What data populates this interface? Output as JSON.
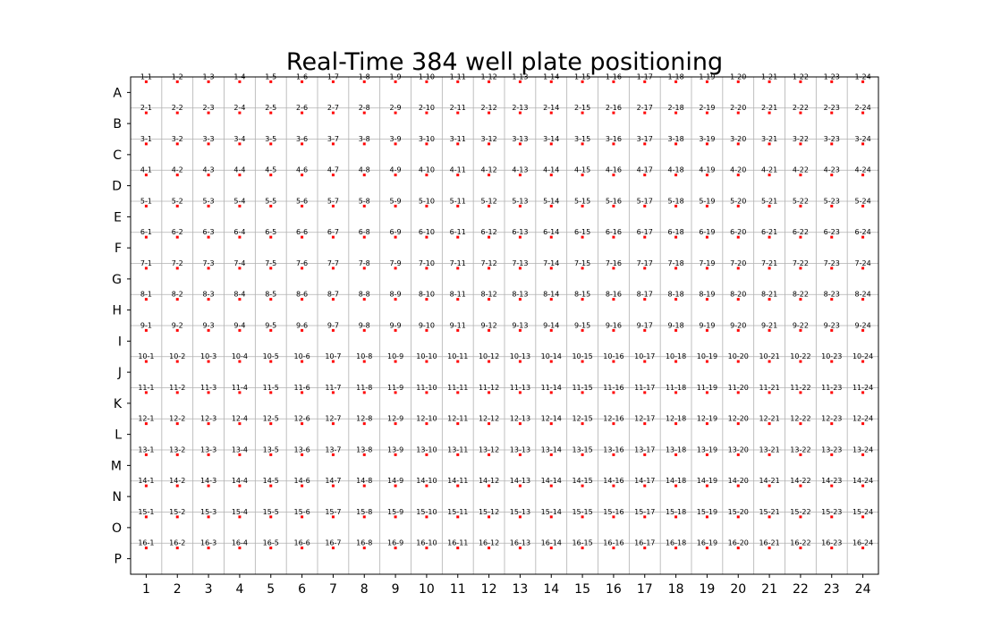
{
  "chart_data": {
    "type": "scatter",
    "title": "Real-Time 384 well plate positioning",
    "xlabel": "",
    "ylabel": "",
    "columns": [
      "1",
      "2",
      "3",
      "4",
      "5",
      "6",
      "7",
      "8",
      "9",
      "10",
      "11",
      "12",
      "13",
      "14",
      "15",
      "16",
      "17",
      "18",
      "19",
      "20",
      "21",
      "22",
      "23",
      "24"
    ],
    "rows": [
      "A",
      "B",
      "C",
      "D",
      "E",
      "F",
      "G",
      "H",
      "I",
      "J",
      "K",
      "L",
      "M",
      "N",
      "O",
      "P"
    ],
    "xlim": [
      0.5,
      24.5
    ],
    "ylim": [
      16.5,
      0.5
    ],
    "grid": true,
    "marker_color": "#ff0000",
    "grid_color": "#b0b0b0",
    "label_format": "{row}-{col}",
    "point_offset": {
      "x": 0.0,
      "y": 0.0
    }
  }
}
